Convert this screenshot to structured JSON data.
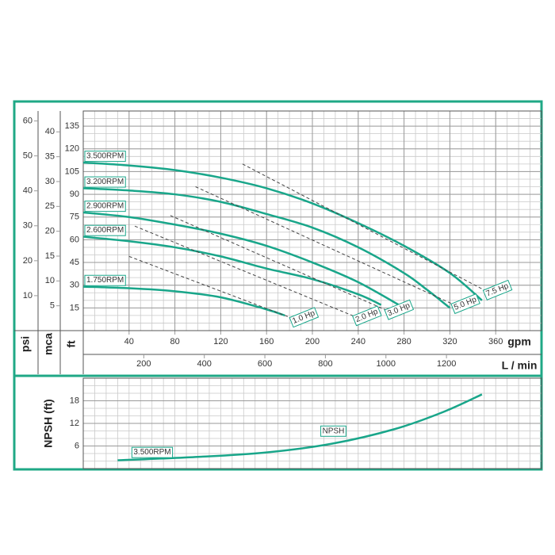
{
  "chart_data": [
    {
      "type": "line",
      "x_label": "gpm",
      "xlim": [
        0,
        400
      ],
      "xticks": [
        40,
        80,
        120,
        160,
        200,
        240,
        280,
        320,
        360
      ],
      "x_minor_step": 10,
      "x2_label": "L / min",
      "x2lim": [
        0,
        1514
      ],
      "x2ticks": [
        200,
        400,
        600,
        800,
        1000,
        1200
      ],
      "y_label": "ft",
      "ylim": [
        0,
        145
      ],
      "yticks": [
        15,
        30,
        45,
        60,
        75,
        90,
        105,
        120,
        135
      ],
      "y_minor_step": 5,
      "y_psi_label": "psi",
      "y_psi_lim": [
        0,
        62.85
      ],
      "y_psi_ticks": [
        10,
        20,
        30,
        40,
        50,
        60
      ],
      "y_mca_label": "mca",
      "y_mca_lim": [
        0,
        44.2
      ],
      "y_mca_ticks": [
        5,
        10,
        15,
        20,
        25,
        30,
        35,
        40
      ],
      "grid": true,
      "color": "#19a68a",
      "series": [
        {
          "name": "3.500RPM",
          "x": [
            0,
            40,
            80,
            120,
            160,
            200,
            240,
            280,
            320,
            348
          ],
          "values": [
            111,
            109,
            106,
            101,
            94,
            84,
            71,
            56,
            38,
            20
          ]
        },
        {
          "name": "3.200RPM",
          "x": [
            0,
            40,
            80,
            120,
            160,
            200,
            240,
            280,
            300,
            320
          ],
          "values": [
            94,
            92.5,
            90,
            85,
            77,
            68,
            55,
            38,
            27,
            15
          ]
        },
        {
          "name": "2.900RPM",
          "x": [
            0,
            40,
            80,
            120,
            160,
            200,
            240,
            280
          ],
          "values": [
            78,
            75,
            70,
            64,
            56,
            45,
            32,
            15
          ]
        },
        {
          "name": "2.600RPM",
          "x": [
            0,
            40,
            80,
            120,
            160,
            200,
            240,
            260
          ],
          "values": [
            62,
            59,
            55,
            49,
            41,
            34,
            24,
            17
          ]
        },
        {
          "name": "1.750RPM",
          "x": [
            0,
            40,
            80,
            120,
            160,
            176
          ],
          "values": [
            29,
            28,
            26,
            22,
            14,
            10
          ]
        }
      ],
      "power_lines": [
        {
          "name": "1.0 Hp",
          "x": [
            40,
            183
          ],
          "values": [
            49,
            8
          ]
        },
        {
          "name": "2.0 Hp",
          "x": [
            45,
            238
          ],
          "values": [
            69,
            9
          ]
        },
        {
          "name": "3.0 Hp",
          "x": [
            76,
            266
          ],
          "values": [
            76,
            13
          ]
        },
        {
          "name": "5.0 Hp",
          "x": [
            98,
            324
          ],
          "values": [
            95,
            17
          ]
        },
        {
          "name": "7.5 Hp",
          "x": [
            139,
            352
          ],
          "values": [
            110,
            26
          ]
        }
      ]
    },
    {
      "type": "line",
      "y_label": "NPSH (ft)",
      "xlim": [
        0,
        400
      ],
      "x_minor_step": 10,
      "ylim": [
        0,
        24
      ],
      "yticks": [
        6,
        12,
        18
      ],
      "y_minor_step": 2,
      "grid": true,
      "color": "#19a68a",
      "annotation": "3.500RPM",
      "series": [
        {
          "name": "NPSH",
          "x": [
            30,
            100,
            160,
            217,
            272,
            314,
            348
          ],
          "values": [
            2.2,
            3.1,
            4.3,
            6.6,
            10.5,
            15,
            19.7
          ]
        }
      ]
    }
  ]
}
